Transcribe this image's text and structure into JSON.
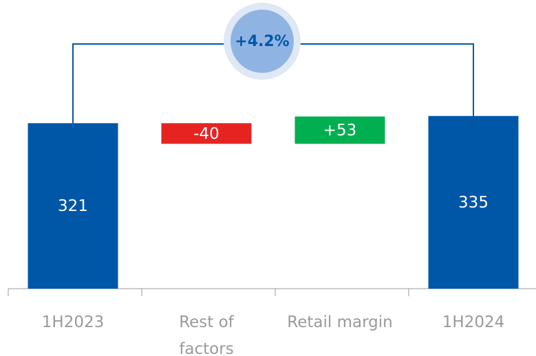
{
  "chart_data": {
    "type": "waterfall",
    "categories": [
      "1H2023",
      "Rest of factors",
      "Retail margin",
      "1H2024"
    ],
    "values": [
      321,
      -40,
      53,
      335
    ],
    "value_labels": [
      "321",
      "-40",
      "+53",
      "335"
    ],
    "colors": [
      "#0057a8",
      "#e52421",
      "#00b050",
      "#0057a8"
    ],
    "annotation": "+4.2%"
  }
}
